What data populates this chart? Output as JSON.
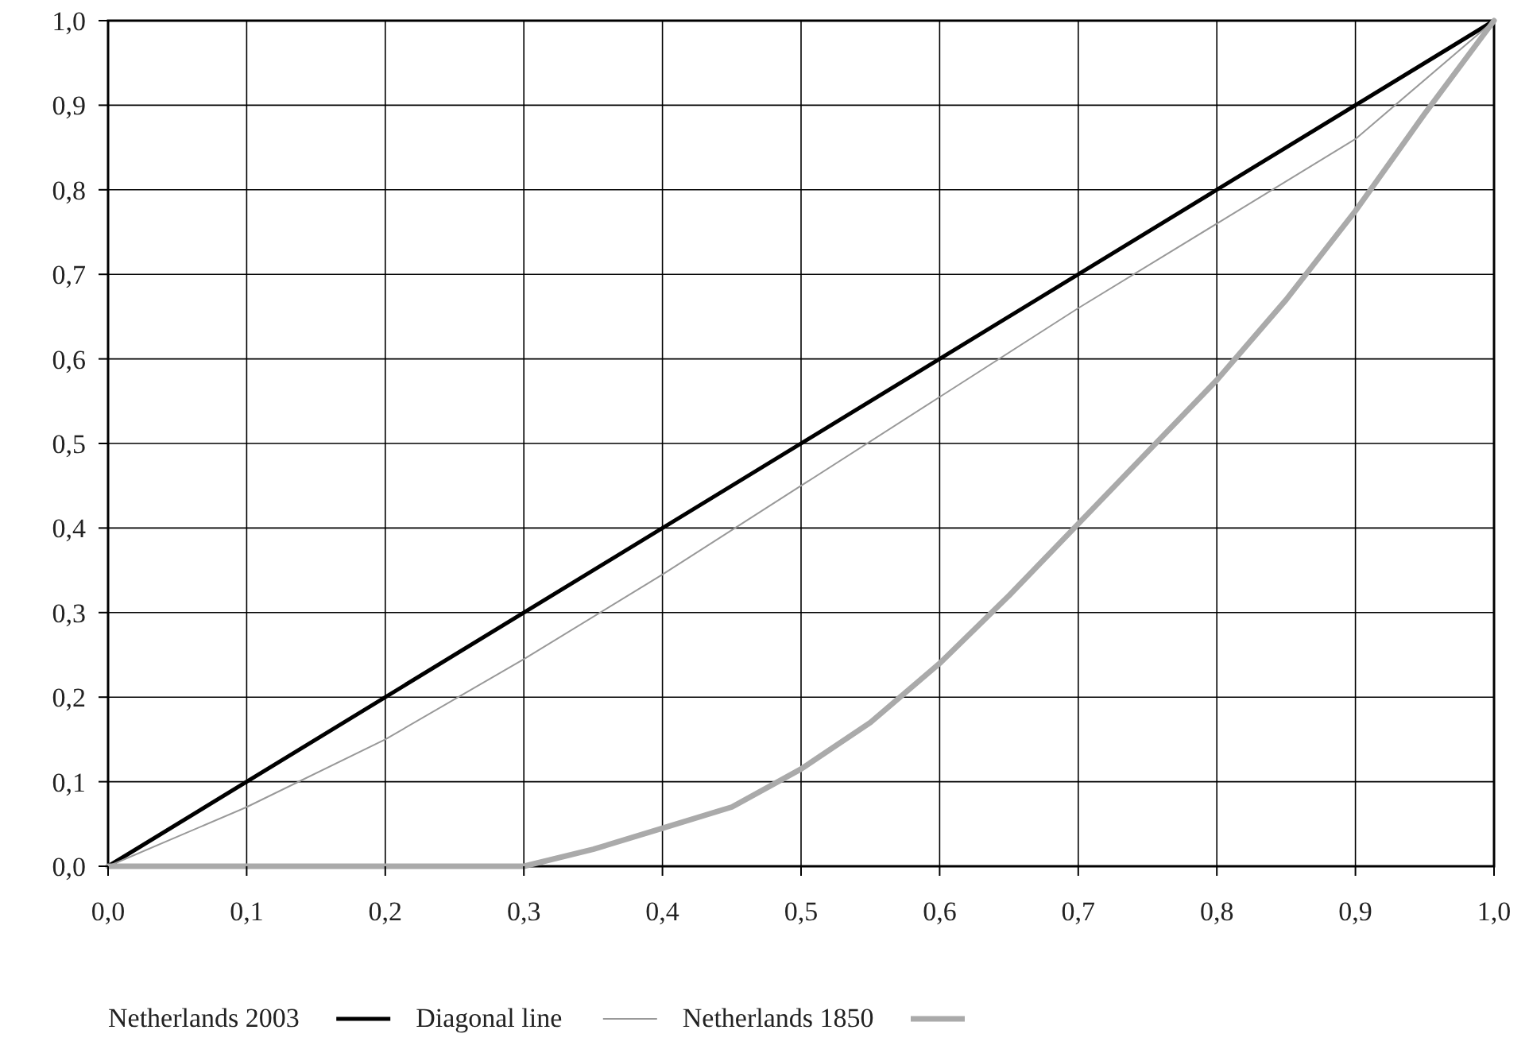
{
  "chart_data": {
    "type": "line",
    "series": [
      {
        "name": "Netherlands 2003",
        "color": "#000000",
        "x": [
          0,
          1
        ],
        "values": [
          0,
          1
        ]
      },
      {
        "name": "Diagonal line",
        "color": "#999999",
        "x": [
          0,
          0.1,
          0.2,
          0.3,
          0.4,
          0.5,
          0.6,
          0.7,
          0.8,
          0.9,
          1
        ],
        "values": [
          0,
          0.07,
          0.15,
          0.245,
          0.345,
          0.45,
          0.555,
          0.66,
          0.76,
          0.86,
          1
        ]
      },
      {
        "name": "Netherlands 1850",
        "color": "#aaaaaa",
        "x": [
          0,
          0.1,
          0.2,
          0.3,
          0.35,
          0.4,
          0.45,
          0.5,
          0.55,
          0.6,
          0.65,
          0.7,
          0.75,
          0.8,
          0.85,
          0.9,
          0.95,
          1
        ],
        "values": [
          0,
          0,
          0,
          0,
          0.02,
          0.045,
          0.07,
          0.115,
          0.17,
          0.24,
          0.32,
          0.405,
          0.49,
          0.575,
          0.67,
          0.775,
          0.89,
          1
        ]
      }
    ],
    "xlim": [
      0,
      1
    ],
    "ylim": [
      0,
      1
    ],
    "xticks": [
      {
        "value": 0,
        "label": "0,0"
      },
      {
        "value": 0.1,
        "label": "0,1"
      },
      {
        "value": 0.2,
        "label": "0,2"
      },
      {
        "value": 0.3,
        "label": "0,3"
      },
      {
        "value": 0.4,
        "label": "0,4"
      },
      {
        "value": 0.5,
        "label": "0,5"
      },
      {
        "value": 0.6,
        "label": "0,6"
      },
      {
        "value": 0.7,
        "label": "0,7"
      },
      {
        "value": 0.8,
        "label": "0,8"
      },
      {
        "value": 0.9,
        "label": "0,9"
      },
      {
        "value": 1,
        "label": "1,0"
      }
    ],
    "yticks": [
      {
        "value": 0,
        "label": "0,0"
      },
      {
        "value": 0.1,
        "label": "0,1"
      },
      {
        "value": 0.2,
        "label": "0,2"
      },
      {
        "value": 0.3,
        "label": "0,3"
      },
      {
        "value": 0.4,
        "label": "0,4"
      },
      {
        "value": 0.5,
        "label": "0,5"
      },
      {
        "value": 0.6,
        "label": "0,6"
      },
      {
        "value": 0.7,
        "label": "0,7"
      },
      {
        "value": 0.8,
        "label": "0,8"
      },
      {
        "value": 0.9,
        "label": "0,9"
      },
      {
        "value": 1,
        "label": "1,0"
      }
    ],
    "grid": true,
    "legend": "bottom",
    "line_style": "solid"
  }
}
